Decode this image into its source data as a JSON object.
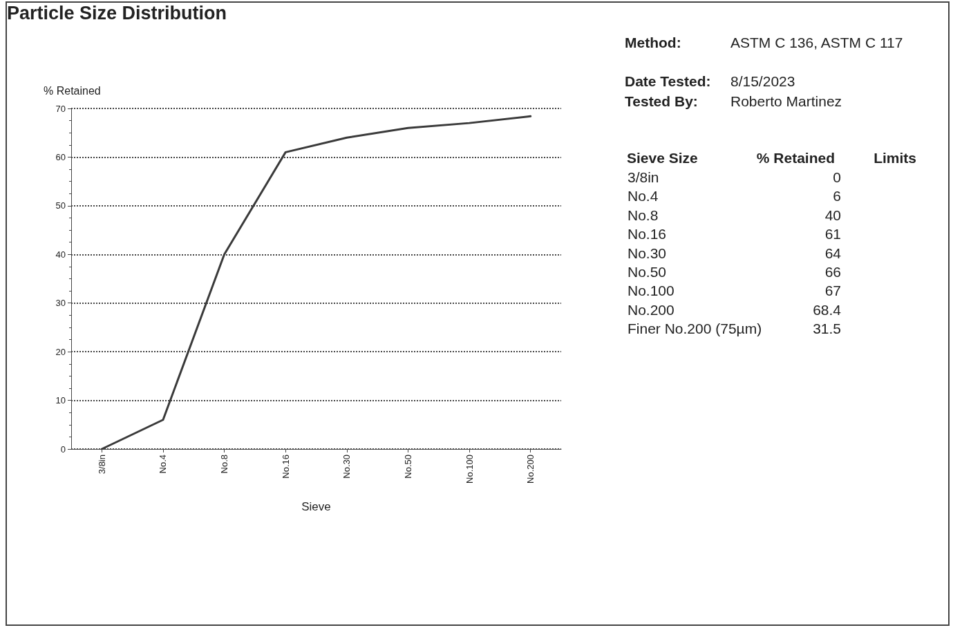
{
  "chart_data": {
    "type": "line",
    "title": "Particle Size Distribution",
    "xlabel": "Sieve",
    "ylabel": "% Retained",
    "categories": [
      "3/8in",
      "No.4",
      "No.8",
      "No.16",
      "No.30",
      "No.50",
      "No.100",
      "No.200"
    ],
    "series": [
      {
        "color": "#3a3a3a",
        "values": [
          0,
          6,
          40,
          61,
          64,
          66,
          67,
          68.4
        ]
      }
    ],
    "ylim": [
      0,
      70
    ],
    "yticks": [
      0,
      10,
      20,
      30,
      40,
      50,
      60,
      70
    ],
    "grid": "y",
    "marker": "none",
    "line_style": "solid",
    "annotations": [
      "Method:",
      "ASTM C 136, ASTM C 117",
      "Date Tested:",
      "8/15/2023",
      "Tested By:",
      "Roberto Martinez",
      "Sieve Size",
      "% Retained",
      "Limits",
      "3/8in",
      "0",
      "No.4",
      "6",
      "No.8",
      "40",
      "No.16",
      "61",
      "No.30",
      "64",
      "No.50",
      "66",
      "No.100",
      "67",
      "No.200",
      "68.4",
      "Finer No.200 (75µm)",
      "31.5"
    ]
  }
}
